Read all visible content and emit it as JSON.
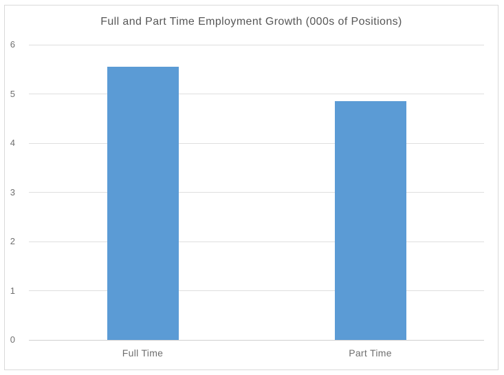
{
  "chart_data": {
    "type": "bar",
    "title": "Full and Part Time Employment Growth (000s of Positions)",
    "categories": [
      "Full Time",
      "Part Time"
    ],
    "values": [
      5.55,
      4.85
    ],
    "xlabel": "",
    "ylabel": "",
    "ylim": [
      0,
      6
    ],
    "yticks": [
      0,
      1,
      2,
      3,
      4,
      5,
      6
    ],
    "grid": true,
    "legend": false,
    "colors": {
      "bar": "#5B9BD5",
      "gridline": "#DEDEDE",
      "axis_line": "#CFCFCF",
      "title_text": "#565656",
      "tick_text": "#6E6E6E",
      "frame_border": "#D9D9D9",
      "background": "#FFFFFF"
    }
  }
}
